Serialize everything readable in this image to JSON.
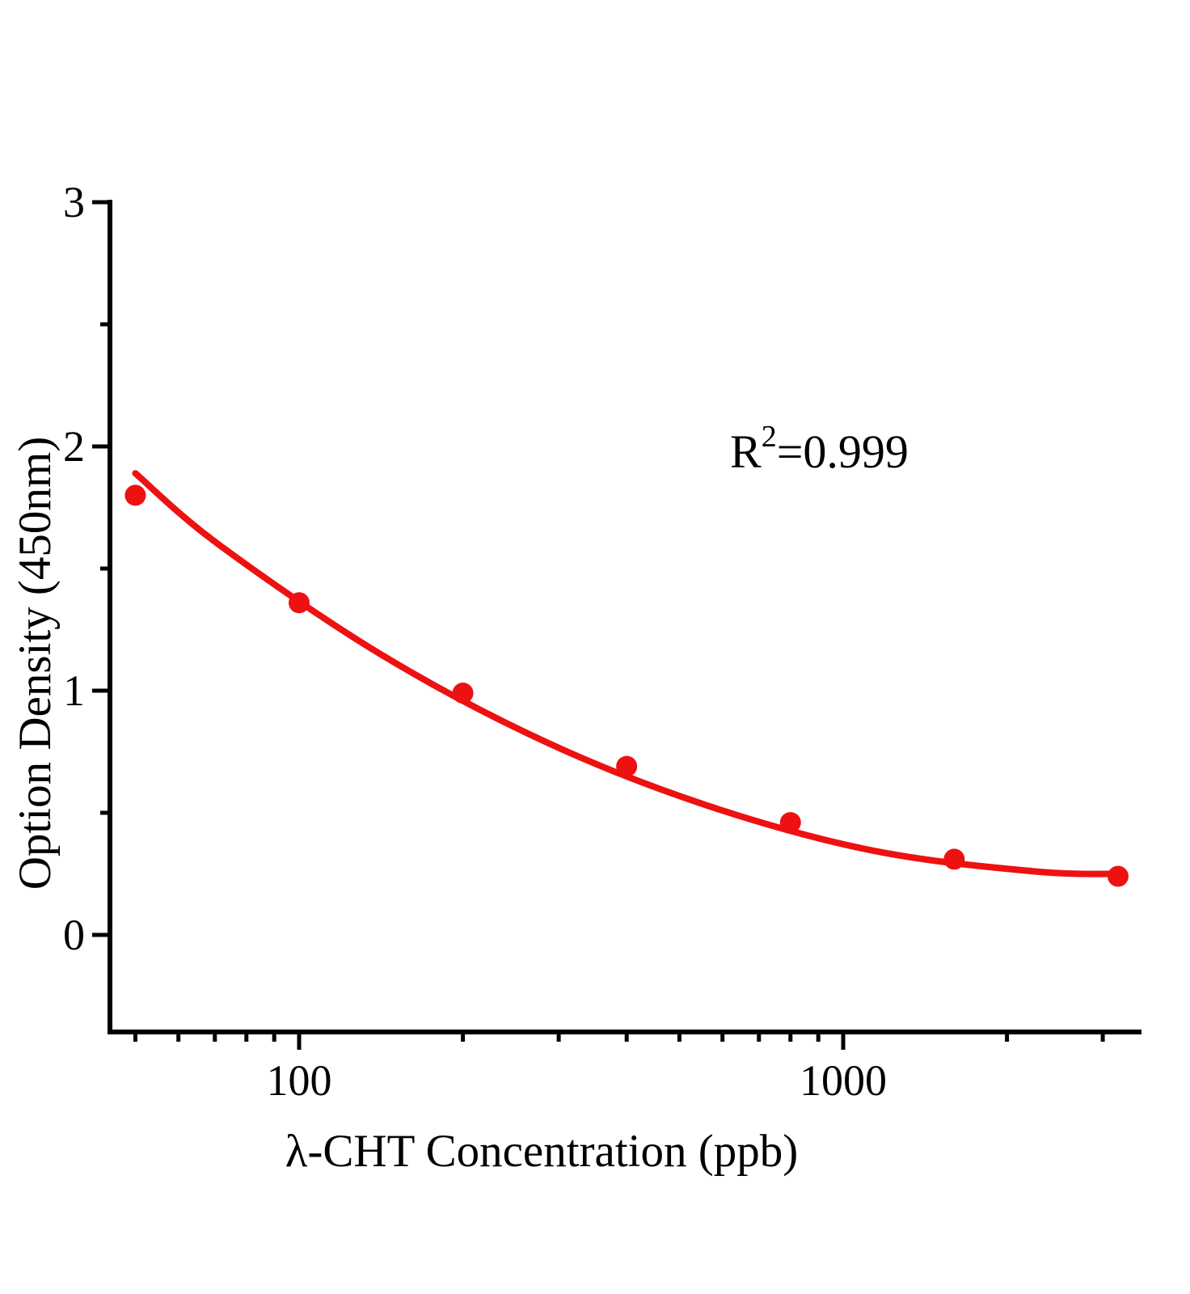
{
  "chart_data": {
    "type": "scatter",
    "title": "",
    "xlabel": "λ-CHT Concentration (ppb)",
    "ylabel": "Option Density (450nm)",
    "annotation": {
      "base": "R",
      "sup": "2",
      "rest": "=0.999"
    },
    "x_scale": "log",
    "y_scale": "linear",
    "xlim": [
      44,
      3530
    ],
    "ylim": [
      -0.4,
      3.02
    ],
    "grid": false,
    "legend": false,
    "x_major_ticks": [
      100,
      1000
    ],
    "x_major_tick_labels": [
      "100",
      "1000"
    ],
    "x_minor_ticks": [
      50,
      60,
      70,
      80,
      90,
      200,
      300,
      400,
      500,
      600,
      700,
      800,
      900,
      2000,
      3000
    ],
    "y_major_ticks": [
      0,
      1,
      2,
      3
    ],
    "y_major_tick_labels": [
      "0",
      "1",
      "2",
      "3"
    ],
    "y_minor_ticks": [
      0.5,
      1.5,
      2.5
    ],
    "series": [
      {
        "name": "standard-points",
        "x": [
          50,
          100,
          200,
          400,
          800,
          1600,
          3200
        ],
        "y": [
          1.8,
          1.36,
          0.99,
          0.69,
          0.46,
          0.31,
          0.24
        ]
      }
    ],
    "fit_curve": {
      "name": "fitted-standard-curve",
      "x": [
        50,
        71,
        141,
        284,
        562,
        1135,
        2250,
        3270
      ],
      "y": [
        1.89,
        1.6,
        1.15,
        0.79,
        0.53,
        0.345,
        0.26,
        0.25
      ]
    },
    "colors": {
      "series": "#ee1111",
      "axis": "#000000",
      "background": "#ffffff"
    }
  }
}
